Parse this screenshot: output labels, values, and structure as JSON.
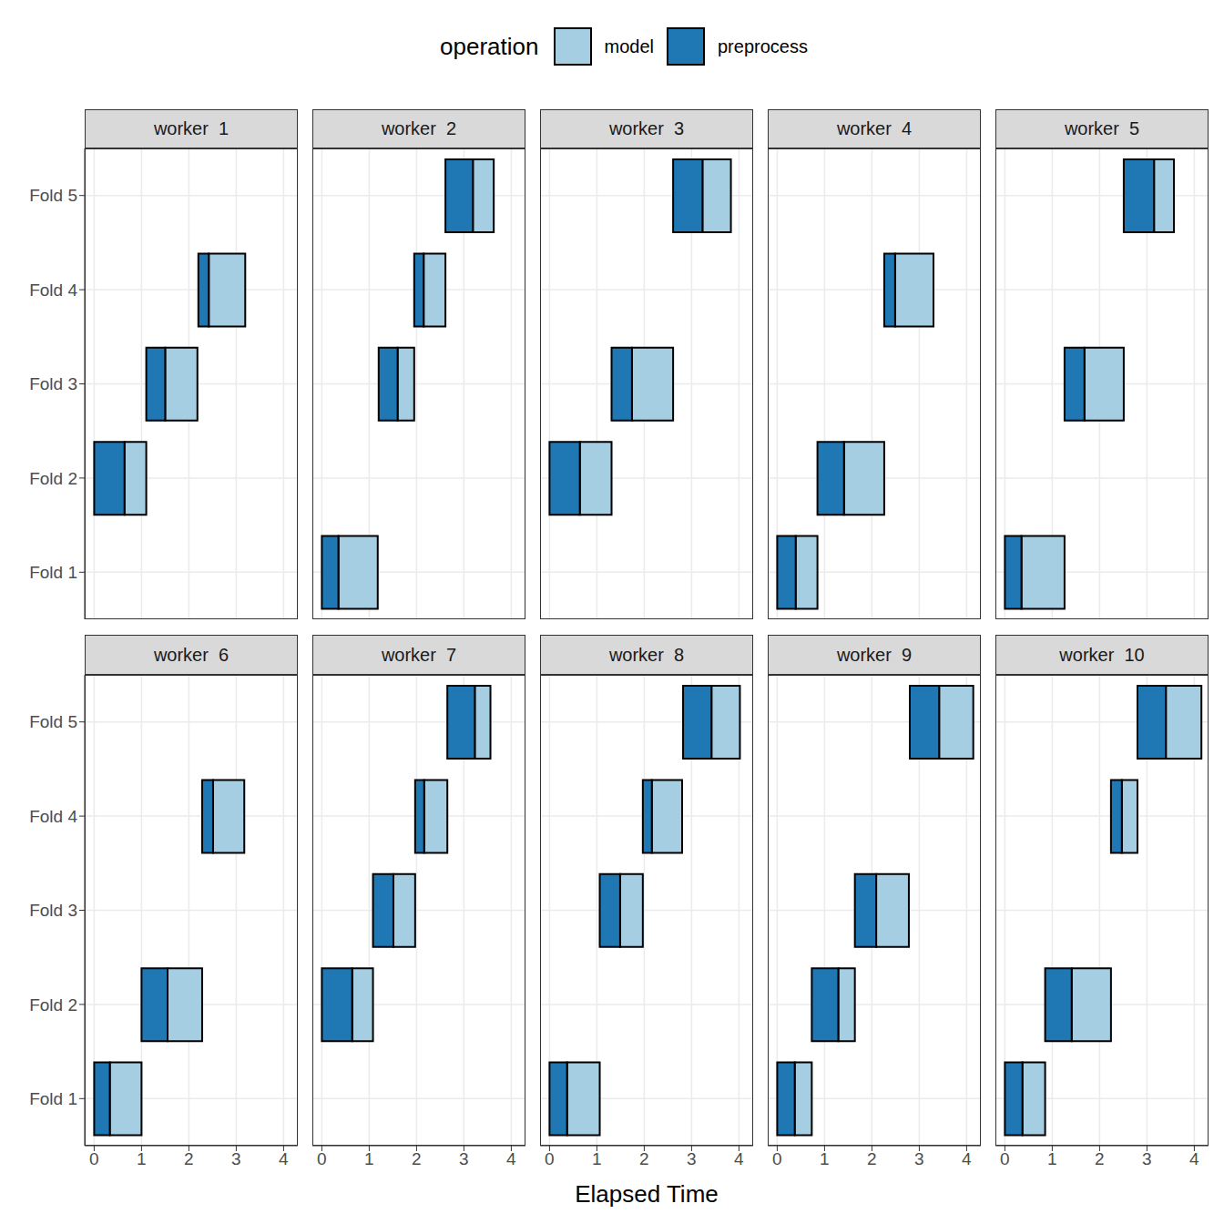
{
  "chart_data": {
    "type": "bar",
    "orientation": "horizontal",
    "legend_title": "operation",
    "x_label": "Elapsed Time",
    "categories": [
      "Fold 1",
      "Fold 2",
      "Fold 3",
      "Fold 4",
      "Fold 5"
    ],
    "xlim": [
      -0.2,
      4.3
    ],
    "xticks": [
      0,
      1,
      2,
      3,
      4
    ],
    "grid": true,
    "series": [
      {
        "name": "model",
        "color": "#a6cee3"
      },
      {
        "name": "preprocess",
        "color": "#1f78b4"
      }
    ],
    "facets": [
      {
        "title": "worker  1",
        "series": [
          {
            "name": "model",
            "values": [
              null,
              [
                0.64,
                1.1
              ],
              [
                1.5,
                2.18
              ],
              [
                2.42,
                3.19
              ],
              null
            ]
          },
          {
            "name": "preprocess",
            "values": [
              null,
              [
                0,
                0.64
              ],
              [
                1.1,
                1.5
              ],
              [
                2.2,
                2.42
              ],
              null
            ]
          }
        ]
      },
      {
        "title": "worker  2",
        "series": [
          {
            "name": "model",
            "values": [
              [
                0.35,
                1.18
              ],
              null,
              [
                1.6,
                1.95
              ],
              [
                2.15,
                2.61
              ],
              [
                3.19,
                3.63
              ]
            ]
          },
          {
            "name": "preprocess",
            "values": [
              [
                0,
                0.35
              ],
              null,
              [
                1.2,
                1.6
              ],
              [
                1.95,
                2.15
              ],
              [
                2.61,
                3.19
              ]
            ]
          }
        ]
      },
      {
        "title": "worker  3",
        "series": [
          {
            "name": "model",
            "values": [
              null,
              [
                0.64,
                1.31
              ],
              [
                1.74,
                2.61
              ],
              null,
              [
                3.23,
                3.83
              ]
            ]
          },
          {
            "name": "preprocess",
            "values": [
              null,
              [
                0,
                0.64
              ],
              [
                1.31,
                1.74
              ],
              null,
              [
                2.61,
                3.23
              ]
            ]
          }
        ]
      },
      {
        "title": "worker  4",
        "series": [
          {
            "name": "model",
            "values": [
              [
                0.39,
                0.85
              ],
              [
                1.41,
                2.26
              ],
              null,
              [
                2.49,
                3.3
              ],
              null
            ]
          },
          {
            "name": "preprocess",
            "values": [
              [
                0,
                0.39
              ],
              [
                0.85,
                1.41
              ],
              null,
              [
                2.26,
                2.49
              ],
              null
            ]
          }
        ]
      },
      {
        "title": "worker  5",
        "series": [
          {
            "name": "model",
            "values": [
              [
                0.35,
                1.26
              ],
              null,
              [
                1.68,
                2.51
              ],
              null,
              [
                3.15,
                3.57
              ]
            ]
          },
          {
            "name": "preprocess",
            "values": [
              [
                0,
                0.35
              ],
              null,
              [
                1.26,
                1.68
              ],
              null,
              [
                2.51,
                3.15
              ]
            ]
          }
        ]
      },
      {
        "title": "worker  6",
        "series": [
          {
            "name": "model",
            "values": [
              [
                0.33,
                1.0
              ],
              [
                1.55,
                2.28
              ],
              null,
              [
                2.51,
                3.17
              ],
              null
            ]
          },
          {
            "name": "preprocess",
            "values": [
              [
                0,
                0.33
              ],
              [
                1.0,
                1.55
              ],
              null,
              [
                2.28,
                2.51
              ],
              null
            ]
          }
        ]
      },
      {
        "title": "worker  7",
        "series": [
          {
            "name": "model",
            "values": [
              null,
              [
                0.64,
                1.08
              ],
              [
                1.51,
                1.97
              ],
              [
                2.16,
                2.65
              ],
              [
                3.23,
                3.56
              ]
            ]
          },
          {
            "name": "preprocess",
            "values": [
              null,
              [
                0,
                0.64
              ],
              [
                1.08,
                1.51
              ],
              [
                1.97,
                2.16
              ],
              [
                2.65,
                3.23
              ]
            ]
          }
        ]
      },
      {
        "title": "worker  8",
        "series": [
          {
            "name": "model",
            "values": [
              [
                0.37,
                1.06
              ],
              null,
              [
                1.49,
                1.97
              ],
              [
                2.16,
                2.8
              ],
              [
                3.42,
                4.02
              ]
            ]
          },
          {
            "name": "preprocess",
            "values": [
              [
                0,
                0.37
              ],
              null,
              [
                1.06,
                1.49
              ],
              [
                1.97,
                2.16
              ],
              [
                2.82,
                3.42
              ]
            ]
          }
        ]
      },
      {
        "title": "worker  9",
        "series": [
          {
            "name": "model",
            "values": [
              [
                0.37,
                0.73
              ],
              [
                1.29,
                1.64
              ],
              [
                2.09,
                2.78
              ],
              null,
              [
                3.42,
                4.14
              ]
            ]
          },
          {
            "name": "preprocess",
            "values": [
              [
                0,
                0.37
              ],
              [
                0.73,
                1.29
              ],
              [
                1.64,
                2.09
              ],
              null,
              [
                2.8,
                3.42
              ]
            ]
          }
        ]
      },
      {
        "title": "worker  10",
        "series": [
          {
            "name": "model",
            "values": [
              [
                0.37,
                0.85
              ],
              [
                1.41,
                2.24
              ],
              null,
              [
                2.47,
                2.8
              ],
              [
                3.4,
                4.15
              ]
            ]
          },
          {
            "name": "preprocess",
            "values": [
              [
                0,
                0.37
              ],
              [
                0.85,
                1.41
              ],
              null,
              [
                2.24,
                2.47
              ],
              [
                2.8,
                3.4
              ]
            ]
          }
        ]
      }
    ]
  }
}
